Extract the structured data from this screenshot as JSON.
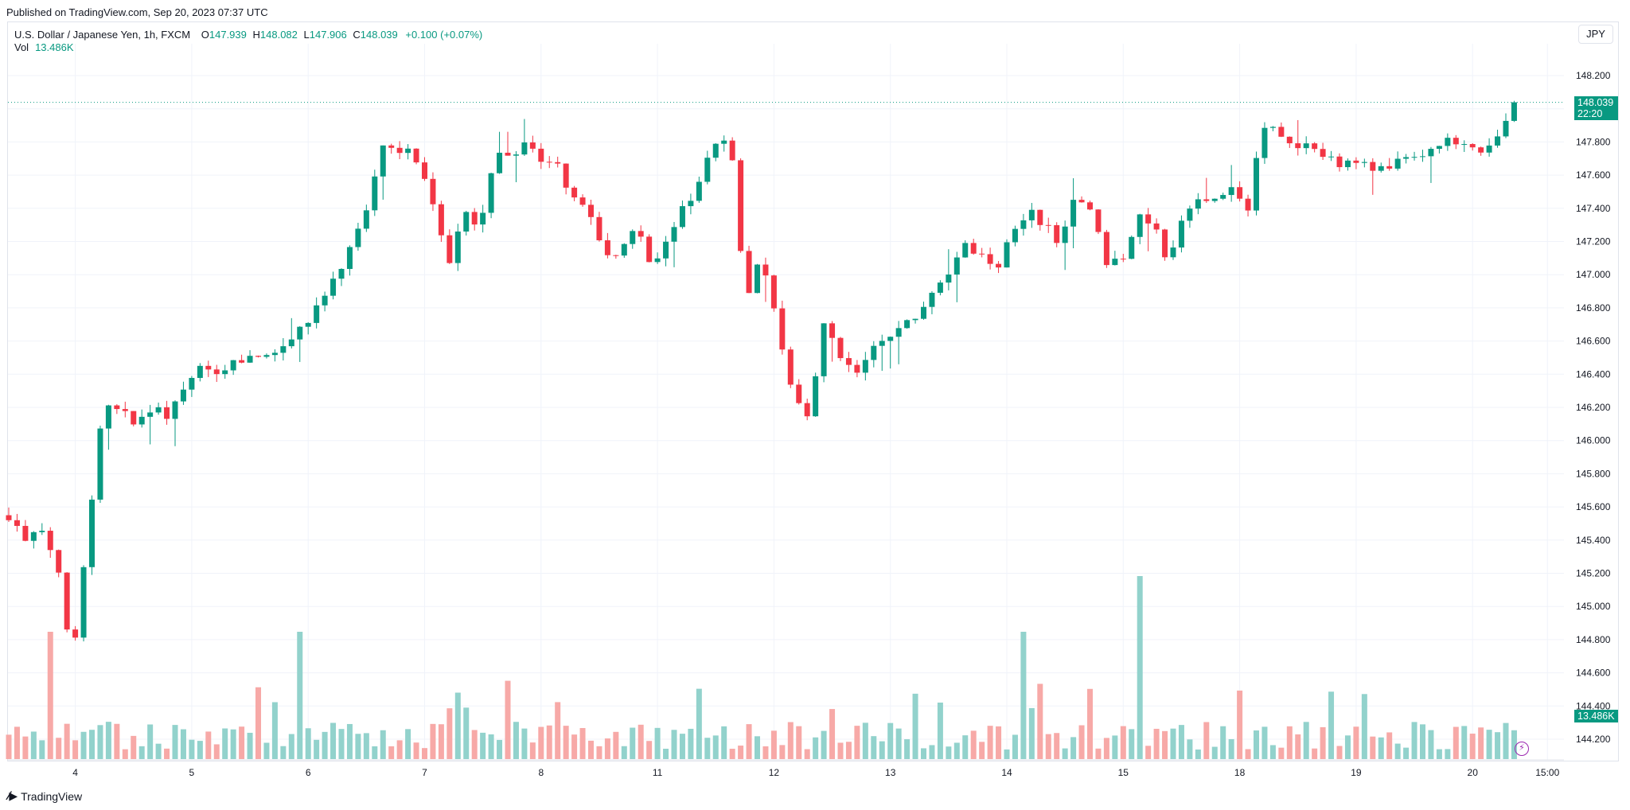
{
  "header": {
    "published": "Published on TradingView.com, Sep 20, 2023 07:37 UTC"
  },
  "legend": {
    "symbol": "U.S. Dollar / Japanese Yen, 1h, FXCM",
    "open_label": "O",
    "open": "147.939",
    "high_label": "H",
    "high": "148.082",
    "low_label": "L",
    "low": "147.906",
    "close_label": "C",
    "close": "148.039",
    "change": "+0.100 (+0.07%)",
    "vol_label": "Vol",
    "vol_value": "13.486K"
  },
  "currency_button": "JPY",
  "price_badge": {
    "price": "148.039",
    "countdown": "22:20"
  },
  "volume_badge": "13.486K",
  "brand": "TradingView",
  "colors": {
    "up": "#089981",
    "down": "#f23645",
    "up_vol": "#92d2cc",
    "down_vol": "#f7a9a7",
    "grid": "#f0f3fa"
  },
  "chart_data": {
    "type": "candlestick",
    "symbol": "USD/JPY",
    "interval": "1h",
    "ylim": [
      144.1,
      148.35
    ],
    "y_ticks": [
      "148.200",
      "148.000",
      "147.800",
      "147.600",
      "147.400",
      "147.200",
      "147.000",
      "146.800",
      "146.600",
      "146.400",
      "146.200",
      "146.000",
      "145.800",
      "145.600",
      "145.400",
      "145.200",
      "145.000",
      "144.800",
      "144.600",
      "144.400",
      "144.200"
    ],
    "x_ticks": [
      {
        "label": "4",
        "bar": 8
      },
      {
        "label": "5",
        "bar": 22
      },
      {
        "label": "6",
        "bar": 36
      },
      {
        "label": "7",
        "bar": 50
      },
      {
        "label": "8",
        "bar": 64
      },
      {
        "label": "11",
        "bar": 78
      },
      {
        "label": "12",
        "bar": 92
      },
      {
        "label": "13",
        "bar": 106
      },
      {
        "label": "14",
        "bar": 120
      },
      {
        "label": "15",
        "bar": 134
      },
      {
        "label": "18",
        "bar": 148
      },
      {
        "label": "19",
        "bar": 162
      },
      {
        "label": "20",
        "bar": 176
      },
      {
        "label": "15:00",
        "bar": 185
      }
    ],
    "last_price": 148.039,
    "close_path": [
      [
        0,
        145.55
      ],
      [
        1,
        145.4
      ],
      [
        2,
        145.45
      ],
      [
        3,
        145.3
      ],
      [
        4,
        144.65
      ],
      [
        5,
        145.4
      ],
      [
        6,
        146.2
      ],
      [
        7,
        146.18
      ],
      [
        8,
        146.12
      ],
      [
        9,
        146.2
      ],
      [
        10,
        146.15
      ],
      [
        11,
        146.25
      ],
      [
        12,
        146.45
      ],
      [
        13,
        146.38
      ],
      [
        14,
        146.46
      ],
      [
        15,
        146.49
      ],
      [
        16,
        146.48
      ],
      [
        17,
        146.5
      ],
      [
        18,
        146.6
      ],
      [
        19,
        146.7
      ],
      [
        20,
        146.85
      ],
      [
        21,
        147.0
      ],
      [
        22,
        147.2
      ],
      [
        23,
        147.45
      ],
      [
        24,
        147.8
      ],
      [
        25,
        147.76
      ],
      [
        26,
        147.7
      ],
      [
        27,
        147.45
      ],
      [
        28,
        147.05
      ],
      [
        29,
        147.4
      ],
      [
        30,
        147.25
      ],
      [
        31,
        147.75
      ],
      [
        32,
        147.7
      ],
      [
        33,
        147.8
      ],
      [
        34,
        147.65
      ],
      [
        35,
        147.65
      ],
      [
        36,
        147.45
      ],
      [
        37,
        147.4
      ],
      [
        38,
        147.1
      ],
      [
        39,
        147.15
      ],
      [
        40,
        147.3
      ],
      [
        41,
        147.0
      ],
      [
        42,
        147.2
      ],
      [
        43,
        147.4
      ],
      [
        44,
        147.55
      ],
      [
        45,
        147.8
      ],
      [
        46,
        147.82
      ],
      [
        47,
        146.85
      ],
      [
        48,
        147.1
      ],
      [
        49,
        146.7
      ],
      [
        50,
        146.3
      ],
      [
        51,
        146.1
      ],
      [
        52,
        146.7
      ],
      [
        53,
        146.5
      ],
      [
        54,
        146.4
      ],
      [
        55,
        146.55
      ],
      [
        56,
        146.6
      ],
      [
        57,
        146.7
      ],
      [
        58,
        146.75
      ],
      [
        59,
        146.9
      ],
      [
        60,
        147.0
      ],
      [
        61,
        147.2
      ],
      [
        62,
        147.1
      ],
      [
        63,
        147.05
      ],
      [
        64,
        147.25
      ],
      [
        65,
        147.4
      ],
      [
        66,
        147.3
      ],
      [
        67,
        147.2
      ],
      [
        68,
        147.45
      ],
      [
        69,
        147.4
      ],
      [
        70,
        147.05
      ],
      [
        71,
        147.1
      ],
      [
        72,
        147.35
      ],
      [
        73,
        147.3
      ],
      [
        74,
        147.05
      ],
      [
        75,
        147.4
      ],
      [
        76,
        147.45
      ],
      [
        77,
        147.45
      ],
      [
        78,
        147.5
      ],
      [
        79,
        147.4
      ],
      [
        80,
        147.9
      ],
      [
        81,
        147.85
      ],
      [
        82,
        147.8
      ],
      [
        83,
        147.75
      ],
      [
        84,
        147.7
      ],
      [
        85,
        147.65
      ],
      [
        86,
        147.7
      ],
      [
        87,
        147.6
      ],
      [
        88,
        147.65
      ],
      [
        89,
        147.7
      ],
      [
        90,
        147.7
      ],
      [
        91,
        147.75
      ],
      [
        92,
        147.82
      ],
      [
        93,
        147.75
      ],
      [
        94,
        147.72
      ],
      [
        95,
        147.85
      ],
      [
        96,
        148.04
      ]
    ],
    "volume_peaks": [
      {
        "bar": 5,
        "value": "high"
      },
      {
        "bar": 35,
        "value": "high"
      },
      {
        "bar": 122,
        "value": "high"
      },
      {
        "bar": 136,
        "value": "highest"
      }
    ]
  }
}
